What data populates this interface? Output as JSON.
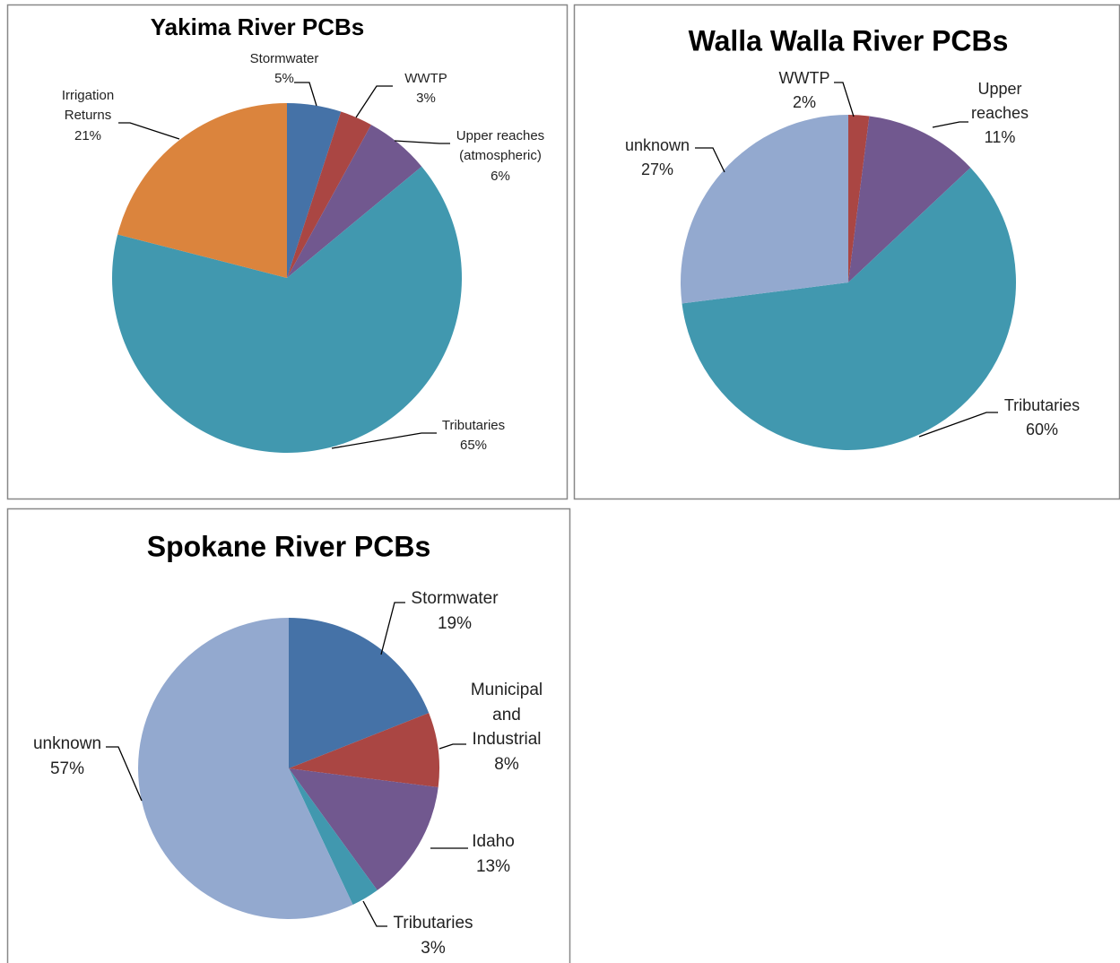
{
  "chart_data": [
    {
      "type": "pie",
      "title": "Yakima River PCBs",
      "categories": [
        "Stormwater",
        "WWTP",
        "Upper reaches (atmospheric)",
        "Tributaries",
        "Irrigation Returns"
      ],
      "values": [
        5,
        3,
        6,
        65,
        21
      ],
      "value_labels": [
        "5%",
        "3%",
        "6%",
        "65%",
        "21%"
      ],
      "colors": [
        "#4572a7",
        "#aa4643",
        "#71588f",
        "#4198af",
        "#db843d"
      ]
    },
    {
      "type": "pie",
      "title": "Walla Walla River PCBs",
      "categories": [
        "WWTP",
        "Upper reaches",
        "Tributaries",
        "unknown"
      ],
      "values": [
        2,
        11,
        60,
        27
      ],
      "value_labels": [
        "2%",
        "11%",
        "60%",
        "27%"
      ],
      "colors": [
        "#aa4643",
        "#71588f",
        "#4198af",
        "#93a9cf"
      ]
    },
    {
      "type": "pie",
      "title": "Spokane River PCBs",
      "categories": [
        "Stormwater",
        "Municipal and Industrial",
        "Idaho",
        "Tributaries",
        "unknown"
      ],
      "values": [
        19,
        8,
        13,
        3,
        57
      ],
      "value_labels": [
        "19%",
        "8%",
        "13%",
        "3%",
        "57%"
      ],
      "colors": [
        "#4572a7",
        "#aa4643",
        "#71588f",
        "#4198af",
        "#93a9cf"
      ]
    }
  ]
}
